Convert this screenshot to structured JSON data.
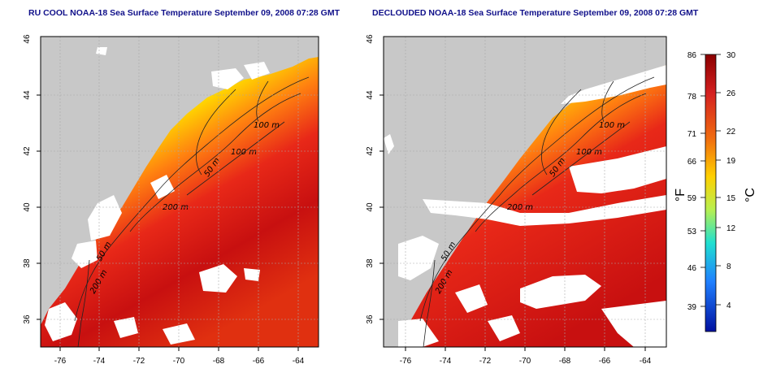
{
  "panels": [
    {
      "id": "left",
      "title": "RU COOL NOAA-18 Sea Surface Temperature September 09, 2008 07:28 GMT",
      "contour_labels": [
        "100 m",
        "100 m",
        "50 m",
        "200 m",
        "50 m",
        "200 m"
      ]
    },
    {
      "id": "right",
      "title": "DECLOUDED NOAA-18 Sea Surface Temperature September 09, 2008 07:28 GMT",
      "contour_labels": [
        "100 m",
        "100 m",
        "50 m",
        "200 m",
        "50 m",
        "200 m"
      ]
    }
  ],
  "axes": {
    "x_ticks": [
      "-76",
      "-74",
      "-72",
      "-70",
      "-68",
      "-66",
      "-64"
    ],
    "y_ticks": [
      "46",
      "44",
      "42",
      "40",
      "38",
      "36"
    ]
  },
  "colorbar": {
    "fahrenheit_ticks": [
      "86",
      "78",
      "71",
      "66",
      "59",
      "53",
      "46",
      "39"
    ],
    "celsius_ticks": [
      "30",
      "26",
      "22",
      "19",
      "15",
      "12",
      "8",
      "4"
    ],
    "fahrenheit_label": "°F",
    "celsius_label": "°C",
    "colors": [
      "#8b0000",
      "#d42020",
      "#f06a10",
      "#ffd000",
      "#b8f050",
      "#20e0d0",
      "#2080ff",
      "#0010a0"
    ]
  },
  "colors": {
    "land": "#c8c8c8",
    "cloud_mask": "#ffffff",
    "title": "#10108a"
  }
}
